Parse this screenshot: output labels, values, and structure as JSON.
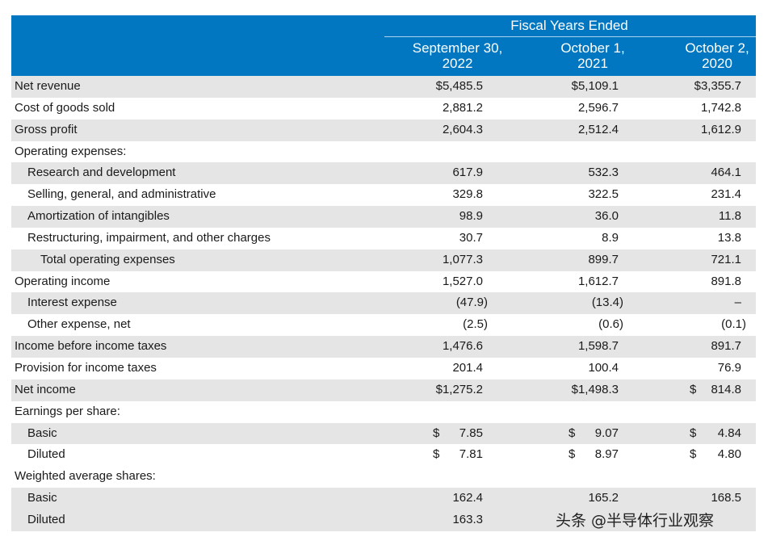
{
  "header": {
    "group_title": "Fiscal Years Ended",
    "col1": [
      "September 30,",
      "2022"
    ],
    "col2": [
      "October 1,",
      "2021"
    ],
    "col3": [
      "October 2,",
      "2020"
    ]
  },
  "rows": [
    {
      "label": "Net revenue",
      "v1": "$5,485.5",
      "v2": "$5,109.1",
      "v3": "$3,355.7"
    },
    {
      "label": "Cost of goods sold",
      "v1": "2,881.2",
      "v2": "2,596.7",
      "v3": "1,742.8"
    },
    {
      "label": "Gross profit",
      "v1": "2,604.3",
      "v2": "2,512.4",
      "v3": "1,612.9"
    },
    {
      "label": "Operating expenses:",
      "v1": "",
      "v2": "",
      "v3": ""
    },
    {
      "label": "Research and development",
      "v1": "617.9",
      "v2": "532.3",
      "v3": "464.1"
    },
    {
      "label": "Selling, general, and administrative",
      "v1": "329.8",
      "v2": "322.5",
      "v3": "231.4"
    },
    {
      "label": "Amortization of intangibles",
      "v1": "98.9",
      "v2": "36.0",
      "v3": "11.8"
    },
    {
      "label": "Restructuring, impairment, and other charges",
      "v1": "30.7",
      "v2": "8.9",
      "v3": "13.8"
    },
    {
      "label": "Total operating expenses",
      "v1": "1,077.3",
      "v2": "899.7",
      "v3": "721.1"
    },
    {
      "label": "Operating income",
      "v1": "1,527.0",
      "v2": "1,612.7",
      "v3": "891.8"
    },
    {
      "label": "Interest expense",
      "v1": "(47.9)",
      "v2": "(13.4)",
      "v3": "–"
    },
    {
      "label": "Other expense, net",
      "v1": "(2.5)",
      "v2": "(0.6)",
      "v3": "(0.1)"
    },
    {
      "label": "Income before income taxes",
      "v1": "1,476.6",
      "v2": "1,598.7",
      "v3": "891.7"
    },
    {
      "label": "Provision for income taxes",
      "v1": "201.4",
      "v2": "100.4",
      "v3": "76.9"
    },
    {
      "label": "Net income",
      "v1": "$1,275.2",
      "v2": "$1,498.3",
      "v3": "814.8",
      "v3_dollar": "$"
    },
    {
      "label": "Earnings per share:",
      "v1": "",
      "v2": "",
      "v3": ""
    },
    {
      "label": "Basic",
      "v1": "7.85",
      "v1_dollar": "$",
      "v2": "9.07",
      "v2_dollar": "$",
      "v3": "4.84",
      "v3_dollar": "$"
    },
    {
      "label": "Diluted",
      "v1": "7.81",
      "v1_dollar": "$",
      "v2": "8.97",
      "v2_dollar": "$",
      "v3": "4.80",
      "v3_dollar": "$"
    },
    {
      "label": "Weighted average shares:",
      "v1": "",
      "v2": "",
      "v3": ""
    },
    {
      "label": "Basic",
      "v1": "162.4",
      "v2": "165.2",
      "v3": "168.5"
    },
    {
      "label": "Diluted",
      "v1": "163.3",
      "v2": "",
      "v3": ""
    }
  ],
  "watermark": "头条 @半导体行业观察"
}
